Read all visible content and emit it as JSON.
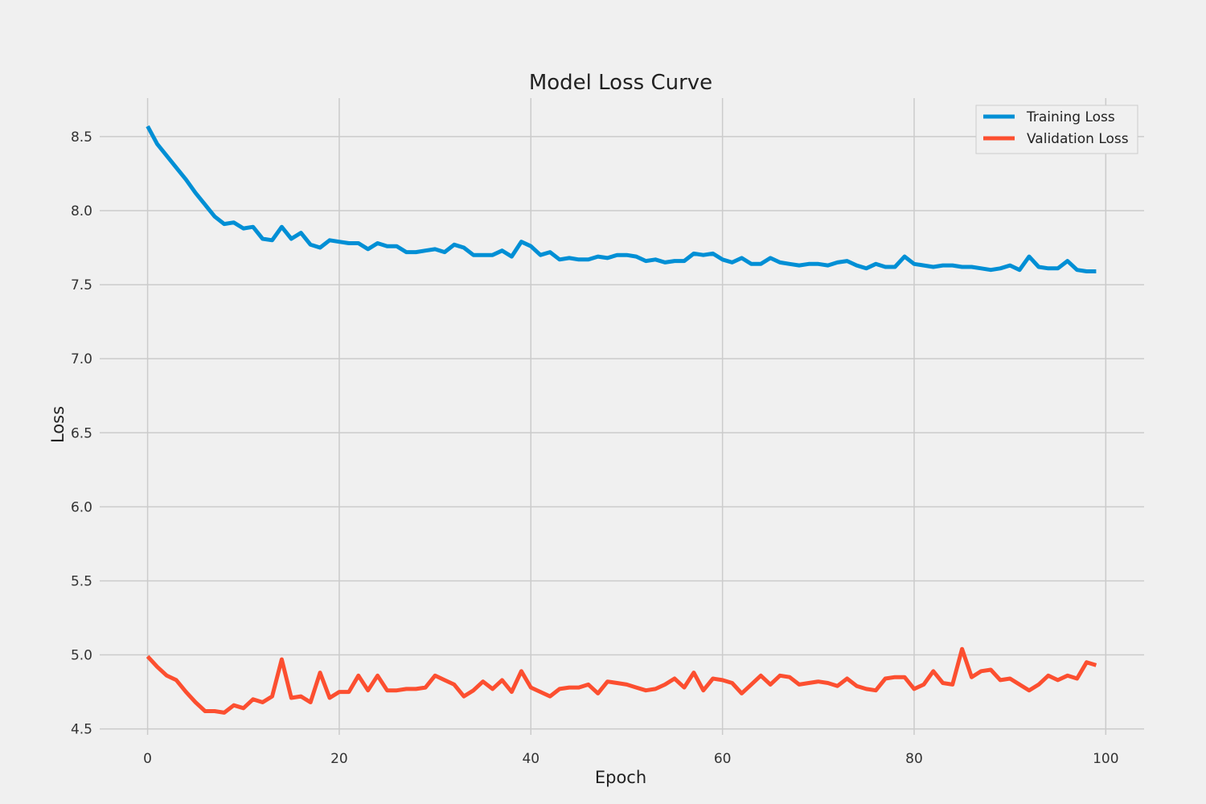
{
  "chart_data": {
    "type": "line",
    "title": "Model Loss Curve",
    "xlabel": "Epoch",
    "ylabel": "Loss",
    "xlim": [
      -5,
      104
    ],
    "ylim": [
      4.46,
      8.76
    ],
    "xticks": [
      0,
      20,
      40,
      60,
      80,
      100
    ],
    "yticks": [
      4.5,
      5.0,
      5.5,
      6.0,
      6.5,
      7.0,
      7.5,
      8.0,
      8.5
    ],
    "grid": true,
    "legend_position": "top-right",
    "series": [
      {
        "name": "Training Loss",
        "color": "#008fd5",
        "x": [
          0,
          1,
          2,
          3,
          4,
          5,
          6,
          7,
          8,
          9,
          10,
          11,
          12,
          13,
          14,
          15,
          16,
          17,
          18,
          19,
          20,
          21,
          22,
          23,
          24,
          25,
          26,
          27,
          28,
          29,
          30,
          31,
          32,
          33,
          34,
          35,
          36,
          37,
          38,
          39,
          40,
          41,
          42,
          43,
          44,
          45,
          46,
          47,
          48,
          49,
          50,
          51,
          52,
          53,
          54,
          55,
          56,
          57,
          58,
          59,
          60,
          61,
          62,
          63,
          64,
          65,
          66,
          67,
          68,
          69,
          70,
          71,
          72,
          73,
          74,
          75,
          76,
          77,
          78,
          79,
          80,
          81,
          82,
          83,
          84,
          85,
          86,
          87,
          88,
          89,
          90,
          91,
          92,
          93,
          94,
          95,
          96,
          97,
          98,
          99
        ],
        "values": [
          8.57,
          8.45,
          8.37,
          8.29,
          8.21,
          8.12,
          8.04,
          7.96,
          7.91,
          7.92,
          7.88,
          7.89,
          7.81,
          7.8,
          7.89,
          7.81,
          7.85,
          7.77,
          7.75,
          7.8,
          7.79,
          7.78,
          7.78,
          7.74,
          7.78,
          7.76,
          7.76,
          7.72,
          7.72,
          7.73,
          7.74,
          7.72,
          7.77,
          7.75,
          7.7,
          7.7,
          7.7,
          7.73,
          7.69,
          7.79,
          7.76,
          7.7,
          7.72,
          7.67,
          7.68,
          7.67,
          7.67,
          7.69,
          7.68,
          7.7,
          7.7,
          7.69,
          7.66,
          7.67,
          7.65,
          7.66,
          7.66,
          7.71,
          7.7,
          7.71,
          7.67,
          7.65,
          7.68,
          7.64,
          7.64,
          7.68,
          7.65,
          7.64,
          7.63,
          7.64,
          7.64,
          7.63,
          7.65,
          7.66,
          7.63,
          7.61,
          7.64,
          7.62,
          7.62,
          7.69,
          7.64,
          7.63,
          7.62,
          7.63,
          7.63,
          7.62,
          7.62,
          7.61,
          7.6,
          7.61,
          7.63,
          7.6,
          7.69,
          7.62,
          7.61,
          7.61,
          7.66,
          7.6,
          7.59,
          7.59
        ]
      },
      {
        "name": "Validation Loss",
        "color": "#fc4f30",
        "x": [
          0,
          1,
          2,
          3,
          4,
          5,
          6,
          7,
          8,
          9,
          10,
          11,
          12,
          13,
          14,
          15,
          16,
          17,
          18,
          19,
          20,
          21,
          22,
          23,
          24,
          25,
          26,
          27,
          28,
          29,
          30,
          31,
          32,
          33,
          34,
          35,
          36,
          37,
          38,
          39,
          40,
          41,
          42,
          43,
          44,
          45,
          46,
          47,
          48,
          49,
          50,
          51,
          52,
          53,
          54,
          55,
          56,
          57,
          58,
          59,
          60,
          61,
          62,
          63,
          64,
          65,
          66,
          67,
          68,
          69,
          70,
          71,
          72,
          73,
          74,
          75,
          76,
          77,
          78,
          79,
          80,
          81,
          82,
          83,
          84,
          85,
          86,
          87,
          88,
          89,
          90,
          91,
          92,
          93,
          94,
          95,
          96,
          97,
          98,
          99
        ],
        "values": [
          4.99,
          4.92,
          4.86,
          4.83,
          4.75,
          4.68,
          4.62,
          4.62,
          4.61,
          4.66,
          4.64,
          4.7,
          4.68,
          4.72,
          4.97,
          4.71,
          4.72,
          4.68,
          4.88,
          4.71,
          4.75,
          4.75,
          4.86,
          4.76,
          4.86,
          4.76,
          4.76,
          4.77,
          4.77,
          4.78,
          4.86,
          4.83,
          4.8,
          4.72,
          4.76,
          4.82,
          4.77,
          4.83,
          4.75,
          4.89,
          4.78,
          4.75,
          4.72,
          4.77,
          4.78,
          4.78,
          4.8,
          4.74,
          4.82,
          4.81,
          4.8,
          4.78,
          4.76,
          4.77,
          4.8,
          4.84,
          4.78,
          4.88,
          4.76,
          4.84,
          4.83,
          4.81,
          4.74,
          4.8,
          4.86,
          4.8,
          4.86,
          4.85,
          4.8,
          4.81,
          4.82,
          4.81,
          4.79,
          4.84,
          4.79,
          4.77,
          4.76,
          4.84,
          4.85,
          4.85,
          4.77,
          4.8,
          4.89,
          4.81,
          4.8,
          5.04,
          4.85,
          4.89,
          4.9,
          4.83,
          4.84,
          4.8,
          4.76,
          4.8,
          4.86,
          4.83,
          4.86,
          4.84,
          4.95,
          4.93
        ]
      }
    ]
  }
}
